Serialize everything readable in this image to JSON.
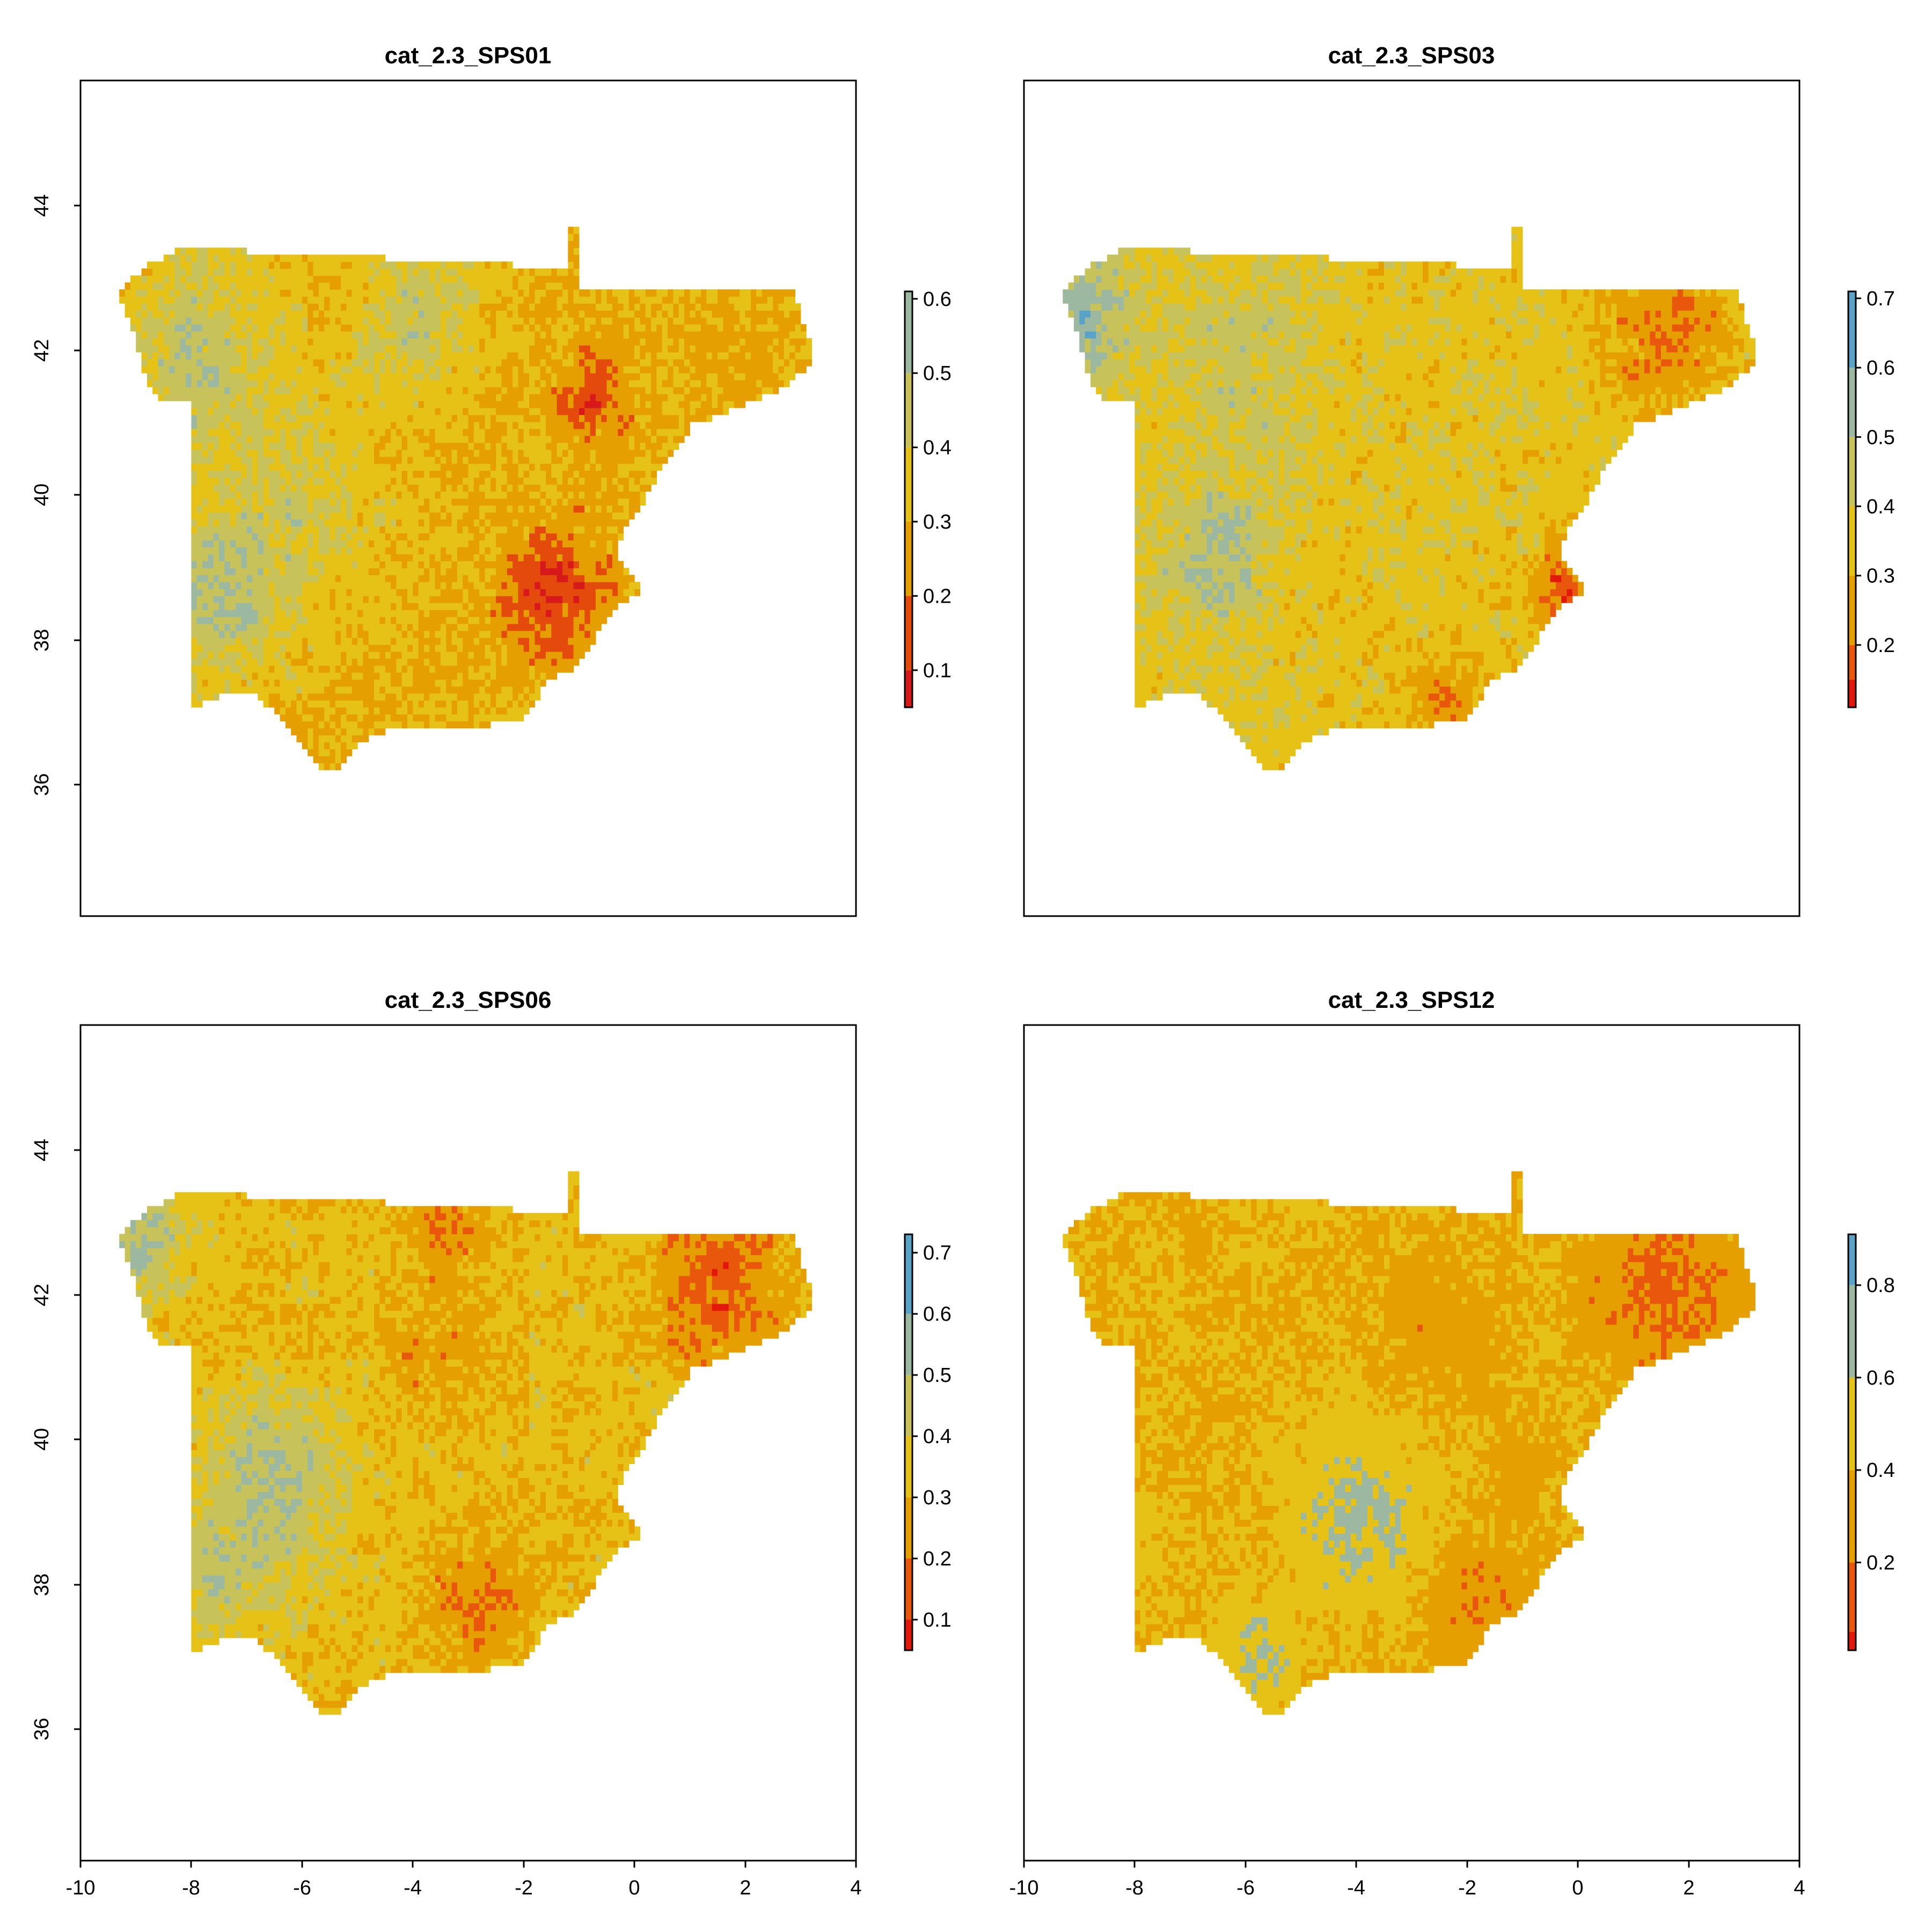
{
  "chart_data": [
    {
      "type": "heatmap",
      "title": "cat_2.3_SPS01",
      "xlim": [
        -10,
        4
      ],
      "ylim": [
        34,
        46
      ],
      "x_ticks": [],
      "y_ticks": [
        "36",
        "38",
        "40",
        "42",
        "44"
      ],
      "legend": {
        "position": "right",
        "ticks": [
          "0.1",
          "0.2",
          "0.3",
          "0.4",
          "0.5",
          "0.6"
        ],
        "tick_values": [
          0.1,
          0.2,
          0.3,
          0.4,
          0.5,
          0.6
        ],
        "min": 0.05,
        "max": 0.61,
        "breaks": [
          0.05,
          0.1,
          0.2,
          0.3,
          0.4,
          0.5,
          0.61
        ]
      },
      "palette": [
        "#d7191c",
        "#e34a0b",
        "#e69f00",
        "#e6c217",
        "#c8c25a",
        "#9cb8a0",
        "#5aa3c8"
      ],
      "field": {
        "base": 0.3,
        "noise": 0.06,
        "hotspots": [
          {
            "lon": -8.0,
            "lat": 42.0,
            "r": 1.4,
            "amp": 0.18
          },
          {
            "lon": -7.5,
            "lat": 38.5,
            "r": 1.3,
            "amp": 0.18
          },
          {
            "lon": -4.0,
            "lat": 42.5,
            "r": 1.2,
            "amp": 0.14
          },
          {
            "lon": -6.0,
            "lat": 40.0,
            "r": 1.5,
            "amp": 0.1
          },
          {
            "lon": -0.8,
            "lat": 41.4,
            "r": 0.6,
            "amp": -0.17
          },
          {
            "lon": -1.5,
            "lat": 38.6,
            "r": 0.9,
            "amp": -0.2
          },
          {
            "lon": 1.5,
            "lat": 42.2,
            "r": 1.0,
            "amp": -0.03
          }
        ]
      }
    },
    {
      "type": "heatmap",
      "title": "cat_2.3_SPS03",
      "xlim": [
        -10,
        4
      ],
      "ylim": [
        34,
        46
      ],
      "x_ticks": [],
      "y_ticks": [],
      "legend": {
        "position": "right",
        "ticks": [
          "0.2",
          "0.3",
          "0.4",
          "0.5",
          "0.6",
          "0.7"
        ],
        "tick_values": [
          0.2,
          0.3,
          0.4,
          0.5,
          0.6,
          0.7
        ],
        "min": 0.11,
        "max": 0.71,
        "breaks": [
          0.11,
          0.15,
          0.2,
          0.3,
          0.4,
          0.5,
          0.6,
          0.71
        ]
      },
      "palette": [
        "#e3170a",
        "#e8570b",
        "#e69f00",
        "#e6c217",
        "#c8c25a",
        "#9cb8a0",
        "#5aa3c8"
      ],
      "field": {
        "base": 0.36,
        "noise": 0.06,
        "hotspots": [
          {
            "lon": -9.0,
            "lat": 42.5,
            "r": 0.9,
            "amp": 0.2
          },
          {
            "lon": -6.5,
            "lat": 39.0,
            "r": 1.2,
            "amp": 0.15
          },
          {
            "lon": -6.0,
            "lat": 42.0,
            "r": 1.5,
            "amp": 0.08
          },
          {
            "lon": 1.5,
            "lat": 42.4,
            "r": 1.2,
            "amp": -0.16
          },
          {
            "lon": -0.3,
            "lat": 38.6,
            "r": 0.7,
            "amp": -0.17
          },
          {
            "lon": -2.5,
            "lat": 37.0,
            "r": 0.7,
            "amp": -0.13
          },
          {
            "lon": -5.5,
            "lat": 38.4,
            "r": 0.9,
            "amp": -0.04
          }
        ]
      }
    },
    {
      "type": "heatmap",
      "title": "cat_2.3_SPS06",
      "xlim": [
        -10,
        4
      ],
      "ylim": [
        34,
        46
      ],
      "x_ticks": [
        "-10",
        "-8",
        "-6",
        "-4",
        "-2",
        "0",
        "2",
        "4"
      ],
      "y_ticks": [
        "36",
        "38",
        "40",
        "42",
        "44"
      ],
      "legend": {
        "position": "right",
        "ticks": [
          "0.1",
          "0.2",
          "0.3",
          "0.4",
          "0.5",
          "0.6",
          "0.7"
        ],
        "tick_values": [
          0.1,
          0.2,
          0.3,
          0.4,
          0.5,
          0.6,
          0.7
        ],
        "min": 0.05,
        "max": 0.73,
        "breaks": [
          0.05,
          0.1,
          0.2,
          0.3,
          0.4,
          0.5,
          0.6,
          0.73
        ]
      },
      "palette": [
        "#e3170a",
        "#e8570b",
        "#e69f00",
        "#e6c217",
        "#c8c25a",
        "#9cb8a0",
        "#5aa3c8"
      ],
      "field": {
        "base": 0.33,
        "noise": 0.06,
        "hotspots": [
          {
            "lon": -9.0,
            "lat": 42.8,
            "r": 0.8,
            "amp": 0.18
          },
          {
            "lon": -6.5,
            "lat": 39.4,
            "r": 1.2,
            "amp": 0.18
          },
          {
            "lon": -7.5,
            "lat": 38.0,
            "r": 0.9,
            "amp": 0.12
          },
          {
            "lon": 1.5,
            "lat": 42.2,
            "r": 1.1,
            "amp": -0.19
          },
          {
            "lon": -3.5,
            "lat": 43.1,
            "r": 0.7,
            "amp": -0.14
          },
          {
            "lon": -2.8,
            "lat": 37.8,
            "r": 1.0,
            "amp": -0.12
          },
          {
            "lon": -3.5,
            "lat": 41.3,
            "r": 1.0,
            "amp": -0.08
          }
        ]
      }
    },
    {
      "type": "heatmap",
      "title": "cat_2.3_SPS12",
      "xlim": [
        -10,
        4
      ],
      "ylim": [
        34,
        46
      ],
      "x_ticks": [
        "-10",
        "-8",
        "-6",
        "-4",
        "-2",
        "0",
        "2",
        "4"
      ],
      "y_ticks": [],
      "legend": {
        "position": "right",
        "ticks": [
          "0.2",
          "0.4",
          "0.6",
          "0.8"
        ],
        "tick_values": [
          0.2,
          0.4,
          0.6,
          0.8
        ],
        "min": 0.01,
        "max": 0.91,
        "breaks": [
          0.01,
          0.05,
          0.2,
          0.4,
          0.6,
          0.8,
          0.91
        ]
      },
      "palette": [
        "#e3170a",
        "#e8570b",
        "#e69f00",
        "#e6c217",
        "#9cb8a0",
        "#5aa3c8"
      ],
      "field": {
        "base": 0.4,
        "noise": 0.08,
        "hotspots": [
          {
            "lon": -4.0,
            "lat": 39.0,
            "r": 1.2,
            "amp": 0.25
          },
          {
            "lon": -5.8,
            "lat": 36.9,
            "r": 0.7,
            "amp": 0.22
          },
          {
            "lon": -8.5,
            "lat": 38.8,
            "r": 1.0,
            "amp": 0.1
          },
          {
            "lon": 1.5,
            "lat": 42.2,
            "r": 1.3,
            "amp": -0.26
          },
          {
            "lon": -1.9,
            "lat": 37.6,
            "r": 0.8,
            "amp": -0.2
          },
          {
            "lon": -2.5,
            "lat": 41.6,
            "r": 1.0,
            "amp": -0.14
          },
          {
            "lon": -1.0,
            "lat": 39.6,
            "r": 0.6,
            "amp": -0.12
          }
        ]
      }
    }
  ]
}
